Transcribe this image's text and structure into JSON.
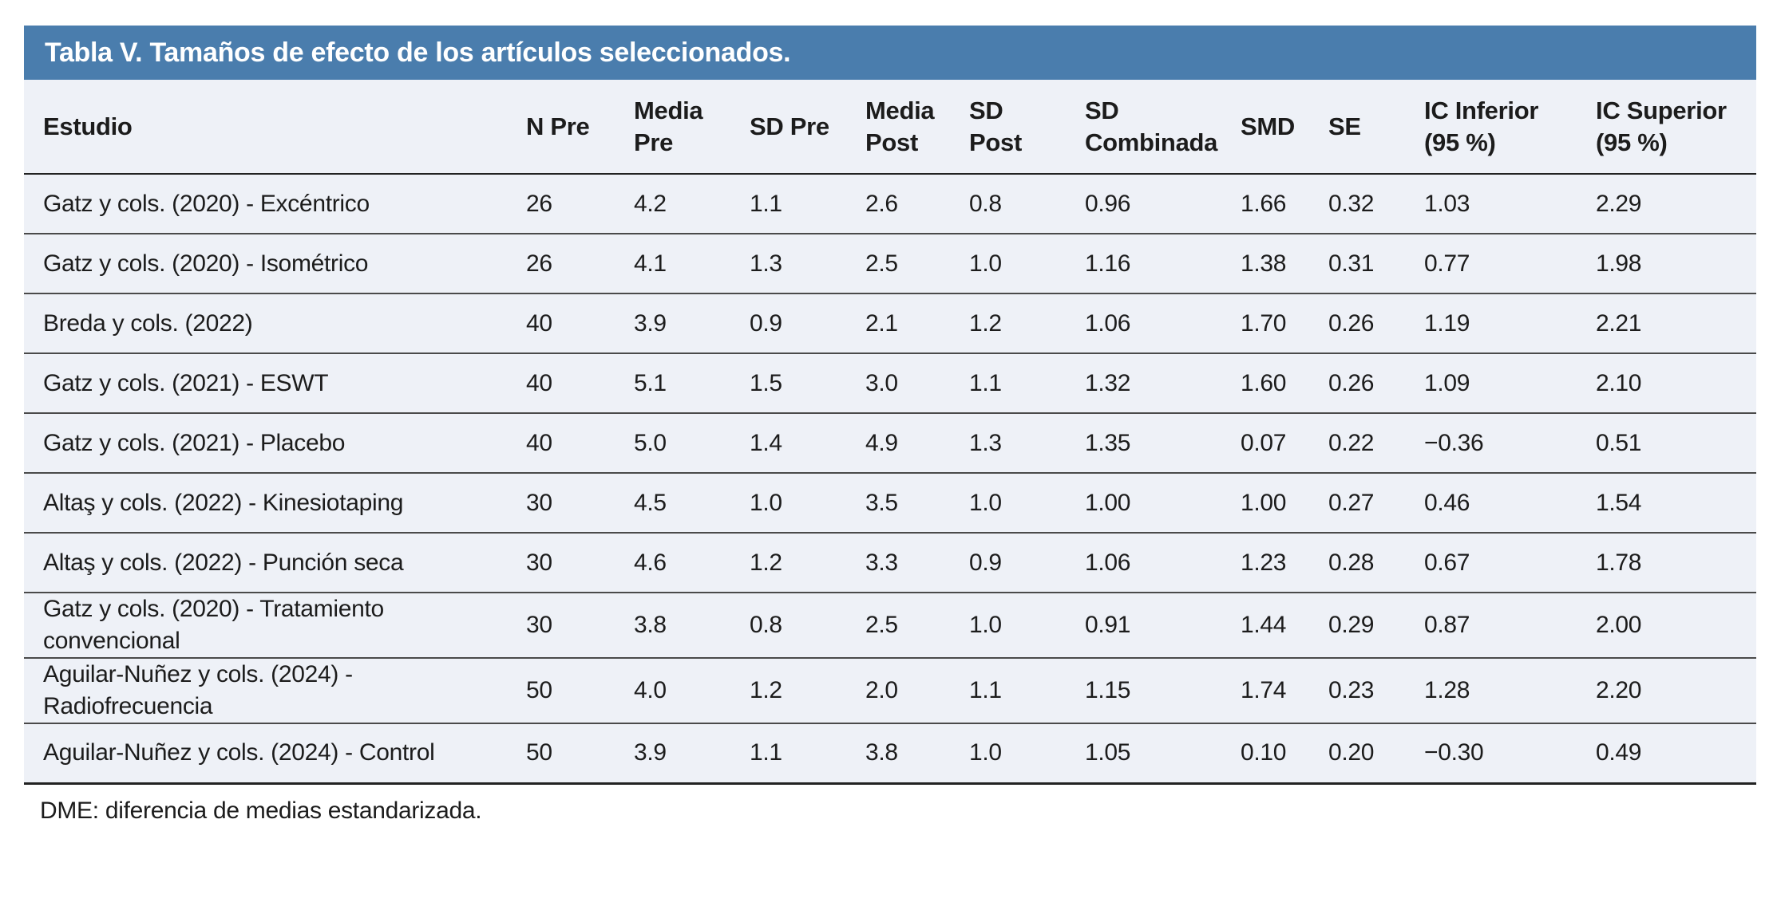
{
  "colors": {
    "title_bar_bg": "#4a7dad",
    "title_text": "#ffffff",
    "row_bg": "#eef1f7",
    "body_text": "#1c1c1c",
    "row_border": "#4a4a4a",
    "strong_border": "#222222"
  },
  "table": {
    "title": "Tabla V. Tamaños de efecto de los artículos seleccionados.",
    "columns": [
      "Estudio",
      "N Pre",
      "Media\nPre",
      "SD Pre",
      "Media\nPost",
      "SD\nPost",
      "SD\nCombinada",
      "SMD",
      "SE",
      "IC Inferior\n(95 %)",
      "IC Superior\n(95 %)"
    ],
    "rows": [
      [
        "Gatz y cols. (2020) - Excéntrico",
        "26",
        "4.2",
        "1.1",
        "2.6",
        "0.8",
        "0.96",
        "1.66",
        "0.32",
        "1.03",
        "2.29"
      ],
      [
        "Gatz y cols. (2020) - Isométrico",
        "26",
        "4.1",
        "1.3",
        "2.5",
        "1.0",
        "1.16",
        "1.38",
        "0.31",
        "0.77",
        "1.98"
      ],
      [
        "Breda y cols. (2022)",
        "40",
        "3.9",
        "0.9",
        "2.1",
        "1.2",
        "1.06",
        "1.70",
        "0.26",
        "1.19",
        "2.21"
      ],
      [
        "Gatz y cols. (2021) - ESWT",
        "40",
        "5.1",
        "1.5",
        "3.0",
        "1.1",
        "1.32",
        "1.60",
        "0.26",
        "1.09",
        "2.10"
      ],
      [
        "Gatz y cols. (2021) - Placebo",
        "40",
        "5.0",
        "1.4",
        "4.9",
        "1.3",
        "1.35",
        "0.07",
        "0.22",
        "−0.36",
        "0.51"
      ],
      [
        "Altaş y cols. (2022) - Kinesiotaping",
        "30",
        "4.5",
        "1.0",
        "3.5",
        "1.0",
        "1.00",
        "1.00",
        "0.27",
        "0.46",
        "1.54"
      ],
      [
        "Altaş y cols. (2022) - Punción seca",
        "30",
        "4.6",
        "1.2",
        "3.3",
        "0.9",
        "1.06",
        "1.23",
        "0.28",
        "0.67",
        "1.78"
      ],
      [
        "Gatz y cols. (2020) - Tratamiento convencional",
        "30",
        "3.8",
        "0.8",
        "2.5",
        "1.0",
        "0.91",
        "1.44",
        "0.29",
        "0.87",
        "2.00"
      ],
      [
        "Aguilar-Nuñez y cols. (2024) - Radiofrecuencia",
        "50",
        "4.0",
        "1.2",
        "2.0",
        "1.1",
        "1.15",
        "1.74",
        "0.23",
        "1.28",
        "2.20"
      ],
      [
        "Aguilar-Nuñez y cols. (2024) - Control",
        "50",
        "3.9",
        "1.1",
        "3.8",
        "1.0",
        "1.05",
        "0.10",
        "0.20",
        "−0.30",
        "0.49"
      ]
    ],
    "footnote": "DME: diferencia de medias estandarizada."
  }
}
